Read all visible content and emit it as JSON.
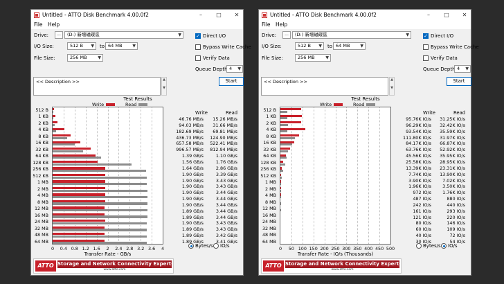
{
  "title": "Untitled - ATTO Disk Benchmark 4.00.0f2",
  "menu": [
    "File",
    "Help"
  ],
  "labels": {
    "drive": "Drive:",
    "io_size": "I/O Size:",
    "to": "to",
    "file_size": "File Size:",
    "direct_io": "Direct I/O",
    "bypass_cache": "Bypass Write Cache",
    "verify_data": "Verify Data",
    "queue_depth": "Queue Depth:",
    "description": "<< Description >>",
    "start": "Start",
    "test_results": "Test Results",
    "write": "Write",
    "read": "Read",
    "bytes_s": "Bytes/s",
    "ios": "IO/s",
    "dots": "...",
    "banner_tagline": "Storage and Network Connectivity Experts",
    "banner_logo": "ATTO",
    "banner_url": "www.atto.com"
  },
  "settings": {
    "drive": "(D:) 新增磁碟區",
    "io_from": "512 B",
    "io_to": "64 MB",
    "file_size": "256 MB",
    "queue_depth": "4",
    "direct_io": true,
    "bypass_cache": false,
    "verify_data": false
  },
  "colors": {
    "write": "#c8202a",
    "read": "#8c8c8c",
    "accent": "#0067c0"
  },
  "icons": {
    "min": "minimize-icon",
    "max": "maximize-icon",
    "close": "close-icon",
    "dropdown": "chevron-down-icon"
  },
  "chart_data": [
    {
      "type": "bar",
      "unit": "Bytes/s",
      "xlabel": "Transfer Rate - GB/s",
      "xlim": [
        0,
        4
      ],
      "x_ticks": [
        "0",
        "0.4",
        "0.8",
        "1.2",
        "1.6",
        "2",
        "2.4",
        "2.8",
        "3.2",
        "3.6",
        "4"
      ],
      "categories": [
        "512 B",
        "1 KB",
        "2 KB",
        "4 KB",
        "8 KB",
        "16 KB",
        "32 KB",
        "64 KB",
        "128 KB",
        "256 KB",
        "512 KB",
        "1 MB",
        "2 MB",
        "4 MB",
        "8 MB",
        "12 MB",
        "16 MB",
        "24 MB",
        "32 MB",
        "48 MB",
        "64 MB"
      ],
      "series": [
        {
          "name": "Write",
          "values": [
            0.04676,
            0.09403,
            0.18269,
            0.43673,
            0.65758,
            0.99657,
            1.39,
            1.56,
            1.64,
            1.9,
            1.9,
            1.9,
            1.9,
            1.9,
            1.9,
            1.89,
            1.89,
            1.9,
            1.89,
            1.89,
            1.89
          ],
          "labels": [
            "46.76 MB/s",
            "94.03 MB/s",
            "182.69 MB/s",
            "436.73 MB/s",
            "657.58 MB/s",
            "996.57 MB/s",
            "1.39 GB/s",
            "1.56 GB/s",
            "1.64 GB/s",
            "1.90 GB/s",
            "1.90 GB/s",
            "1.90 GB/s",
            "1.90 GB/s",
            "1.90 GB/s",
            "1.90 GB/s",
            "1.89 GB/s",
            "1.89 GB/s",
            "1.90 GB/s",
            "1.89 GB/s",
            "1.89 GB/s",
            "1.89 GB/s"
          ]
        },
        {
          "name": "Read",
          "values": [
            0.01526,
            0.03166,
            0.06981,
            0.1249,
            0.52241,
            0.81294,
            1.1,
            1.76,
            2.86,
            3.39,
            3.43,
            3.43,
            3.44,
            3.44,
            3.44,
            3.44,
            3.44,
            3.43,
            3.43,
            3.42,
            3.41
          ],
          "labels": [
            "15.26 MB/s",
            "31.66 MB/s",
            "69.81 MB/s",
            "124.90 MB/s",
            "522.41 MB/s",
            "812.94 MB/s",
            "1.10 GB/s",
            "1.76 GB/s",
            "2.86 GB/s",
            "3.39 GB/s",
            "3.43 GB/s",
            "3.43 GB/s",
            "3.44 GB/s",
            "3.44 GB/s",
            "3.44 GB/s",
            "3.44 GB/s",
            "3.44 GB/s",
            "3.43 GB/s",
            "3.43 GB/s",
            "3.42 GB/s",
            "3.41 GB/s"
          ]
        }
      ]
    },
    {
      "type": "bar",
      "unit": "IO/s",
      "xlabel": "Transfer Rate - IO/s (Thousands)",
      "xlim": [
        0,
        500
      ],
      "x_ticks": [
        "0",
        "50",
        "100",
        "150",
        "200",
        "250",
        "300",
        "350",
        "400",
        "450",
        "500"
      ],
      "categories": [
        "512 B",
        "1 KB",
        "2 KB",
        "4 KB",
        "8 KB",
        "16 KB",
        "32 KB",
        "64 KB",
        "128 KB",
        "256 KB",
        "512 KB",
        "1 MB",
        "2 MB",
        "4 MB",
        "8 MB",
        "12 MB",
        "16 MB",
        "24 MB",
        "32 MB",
        "48 MB",
        "64 MB"
      ],
      "series": [
        {
          "name": "Write",
          "values": [
            95.76,
            96.29,
            93.54,
            111.8,
            84.17,
            63.76,
            45.56,
            25.58,
            13.39,
            7.74,
            3.9,
            1.96,
            0.972,
            0.487,
            0.242,
            0.161,
            0.121,
            0.08,
            0.06,
            0.04,
            0.03
          ],
          "labels": [
            "95.76K IO/s",
            "96.29K IO/s",
            "93.54K IO/s",
            "111.80K IO/s",
            "84.17K IO/s",
            "63.76K IO/s",
            "45.56K IO/s",
            "25.58K IO/s",
            "13.39K IO/s",
            "7.74K IO/s",
            "3.90K IO/s",
            "1.96K IO/s",
            "972 IO/s",
            "487 IO/s",
            "242 IO/s",
            "161 IO/s",
            "121 IO/s",
            "80 IO/s",
            "60 IO/s",
            "40 IO/s",
            "30 IO/s"
          ]
        },
        {
          "name": "Read",
          "values": [
            31.25,
            32.42,
            35.59,
            31.97,
            66.87,
            52.92,
            35.95,
            28.95,
            23.31,
            13.9,
            7.02,
            3.5,
            1.76,
            0.88,
            0.44,
            0.293,
            0.22,
            0.146,
            0.109,
            0.072,
            0.054
          ],
          "labels": [
            "31.25K IO/s",
            "32.42K IO/s",
            "35.59K IO/s",
            "31.97K IO/s",
            "66.87K IO/s",
            "52.92K IO/s",
            "35.95K IO/s",
            "28.95K IO/s",
            "23.31K IO/s",
            "13.90K IO/s",
            "7.02K IO/s",
            "3.50K IO/s",
            "1.76K IO/s",
            "880 IO/s",
            "440 IO/s",
            "293 IO/s",
            "220 IO/s",
            "146 IO/s",
            "109 IO/s",
            "72 IO/s",
            "54 IO/s"
          ]
        }
      ]
    }
  ]
}
